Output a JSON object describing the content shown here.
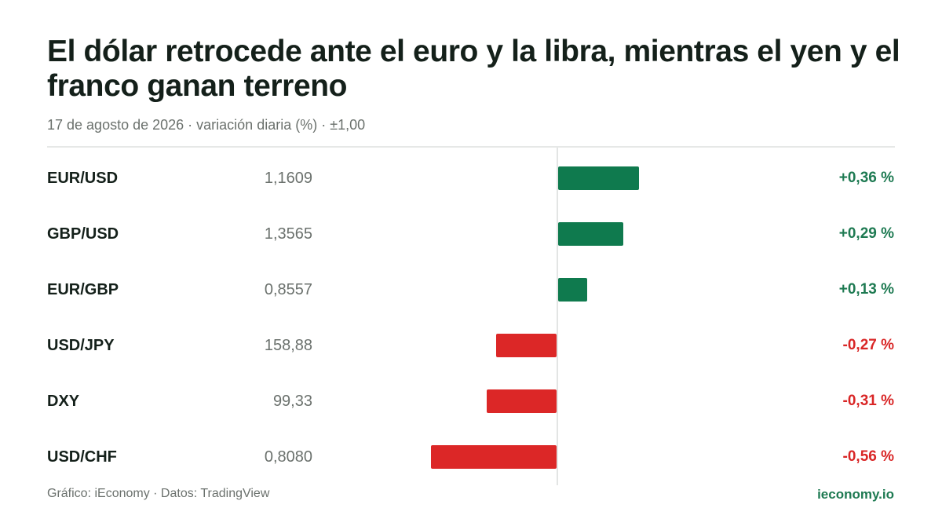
{
  "header": {
    "title": "El dólar retrocede ante el euro y la libra, mientras el yen y el franco ganan terreno",
    "subtitle": "17 de agosto de 2026 · variación diaria (%) · ±1,00"
  },
  "footer": {
    "source": "Gráfico: iEconomy · Datos: TradingView",
    "brand": "ieconomy.io"
  },
  "colors": {
    "positive": "#0f7a4e",
    "negative": "#dc2727",
    "positive_text": "#1e7a52",
    "negative_text": "#d92626"
  },
  "chart_data": {
    "type": "bar",
    "orientation": "horizontal",
    "title": "El dólar retrocede ante el euro y la libra, mientras el yen y el franco ganan terreno",
    "subtitle": "17 de agosto de 2026 · variación diaria (%) · ±1,00",
    "xlim": [
      -1.0,
      1.0
    ],
    "grid": false,
    "categories": [
      "EUR/USD",
      "GBP/USD",
      "EUR/GBP",
      "USD/JPY",
      "DXY",
      "USD/CHF"
    ],
    "values": [
      0.36,
      0.29,
      0.13,
      -0.27,
      -0.31,
      -0.56
    ],
    "rows": [
      {
        "pair": "EUR/USD",
        "price": "1,1609",
        "change": 0.36,
        "change_label": "+0,36 %"
      },
      {
        "pair": "GBP/USD",
        "price": "1,3565",
        "change": 0.29,
        "change_label": "+0,29 %"
      },
      {
        "pair": "EUR/GBP",
        "price": "0,8557",
        "change": 0.13,
        "change_label": "+0,13 %"
      },
      {
        "pair": "USD/JPY",
        "price": "158,88",
        "change": -0.27,
        "change_label": "-0,27 %"
      },
      {
        "pair": "DXY",
        "price": "99,33",
        "change": -0.31,
        "change_label": "-0,31 %"
      },
      {
        "pair": "USD/CHF",
        "price": "0,8080",
        "change": -0.56,
        "change_label": "-0,56 %"
      }
    ]
  }
}
